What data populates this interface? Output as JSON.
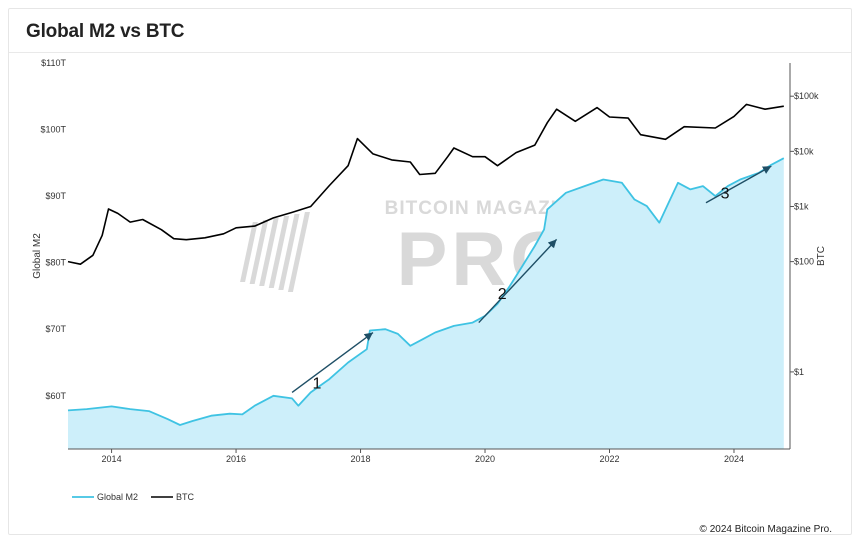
{
  "header": {
    "title": "Global M2 vs BTC"
  },
  "footer": {
    "copyright": "© 2024 Bitcoin Magazine Pro."
  },
  "watermark": {
    "top": "BITCOIN MAGAZINE",
    "main": "PRO"
  },
  "colors": {
    "m2": "#3fc3e3",
    "m2_fill": "#cdeffa",
    "btc": "#000000",
    "arrow": "#1f4f66",
    "watermark": "#d9d9d9"
  },
  "chart_data": {
    "type": "area",
    "title": "Global M2 vs BTC",
    "x_axis": {
      "ticks": [
        "2014",
        "2016",
        "2018",
        "2020",
        "2022",
        "2024"
      ],
      "range": [
        2013.3,
        2024.9
      ]
    },
    "y_left": {
      "label": "Global M2",
      "ticks": [
        "$60T",
        "$70T",
        "$80T",
        "$90T",
        "$100T",
        "$110T"
      ],
      "tick_values": [
        60,
        70,
        80,
        90,
        100,
        110
      ],
      "range": [
        52,
        110
      ]
    },
    "y_right": {
      "label": "BTC",
      "scale": "log",
      "ticks": [
        "$1",
        "$100",
        "$1k",
        "$10k",
        "$100k"
      ],
      "tick_values": [
        1,
        100,
        1000,
        10000,
        100000
      ],
      "range": [
        0.04,
        400000
      ]
    },
    "legend": [
      "Global M2",
      "BTC"
    ],
    "series": [
      {
        "name": "Global M2",
        "axis": "left",
        "style": "area",
        "points": [
          [
            2013.3,
            57.8
          ],
          [
            2013.6,
            58.0
          ],
          [
            2014.0,
            58.4
          ],
          [
            2014.3,
            58.0
          ],
          [
            2014.6,
            57.7
          ],
          [
            2014.9,
            56.5
          ],
          [
            2015.1,
            55.6
          ],
          [
            2015.3,
            56.2
          ],
          [
            2015.6,
            57.0
          ],
          [
            2015.9,
            57.3
          ],
          [
            2016.1,
            57.2
          ],
          [
            2016.3,
            58.5
          ],
          [
            2016.6,
            60.0
          ],
          [
            2016.9,
            59.6
          ],
          [
            2017.0,
            58.5
          ],
          [
            2017.2,
            60.5
          ],
          [
            2017.5,
            62.5
          ],
          [
            2017.8,
            65.0
          ],
          [
            2018.1,
            67.0
          ],
          [
            2018.15,
            69.8
          ],
          [
            2018.4,
            70.0
          ],
          [
            2018.6,
            69.3
          ],
          [
            2018.8,
            67.5
          ],
          [
            2019.0,
            68.5
          ],
          [
            2019.2,
            69.5
          ],
          [
            2019.5,
            70.5
          ],
          [
            2019.8,
            71.0
          ],
          [
            2020.0,
            72.0
          ],
          [
            2020.2,
            73.8
          ],
          [
            2020.4,
            76.5
          ],
          [
            2020.6,
            79.5
          ],
          [
            2020.8,
            82.5
          ],
          [
            2020.95,
            85.0
          ],
          [
            2021.0,
            88.0
          ],
          [
            2021.3,
            90.5
          ],
          [
            2021.6,
            91.5
          ],
          [
            2021.9,
            92.5
          ],
          [
            2022.2,
            92.0
          ],
          [
            2022.4,
            89.5
          ],
          [
            2022.6,
            88.5
          ],
          [
            2022.8,
            86.0
          ],
          [
            2022.95,
            89.0
          ],
          [
            2023.1,
            92.0
          ],
          [
            2023.3,
            91.0
          ],
          [
            2023.5,
            91.5
          ],
          [
            2023.7,
            90.0
          ],
          [
            2023.9,
            91.5
          ],
          [
            2024.1,
            92.5
          ],
          [
            2024.4,
            93.5
          ],
          [
            2024.6,
            94.7
          ],
          [
            2024.8,
            95.7
          ]
        ]
      },
      {
        "name": "BTC",
        "axis": "right",
        "style": "line",
        "points": [
          [
            2013.3,
            100
          ],
          [
            2013.5,
            90
          ],
          [
            2013.7,
            130
          ],
          [
            2013.85,
            300
          ],
          [
            2013.95,
            900
          ],
          [
            2014.1,
            750
          ],
          [
            2014.3,
            520
          ],
          [
            2014.5,
            580
          ],
          [
            2014.8,
            380
          ],
          [
            2015.0,
            260
          ],
          [
            2015.2,
            250
          ],
          [
            2015.5,
            270
          ],
          [
            2015.8,
            320
          ],
          [
            2016.0,
            410
          ],
          [
            2016.3,
            440
          ],
          [
            2016.6,
            620
          ],
          [
            2016.9,
            780
          ],
          [
            2017.2,
            1000
          ],
          [
            2017.5,
            2400
          ],
          [
            2017.8,
            5500
          ],
          [
            2017.95,
            17000
          ],
          [
            2018.2,
            9000
          ],
          [
            2018.5,
            7000
          ],
          [
            2018.8,
            6400
          ],
          [
            2018.95,
            3800
          ],
          [
            2019.2,
            4000
          ],
          [
            2019.4,
            8000
          ],
          [
            2019.5,
            11500
          ],
          [
            2019.8,
            8000
          ],
          [
            2020.0,
            8000
          ],
          [
            2020.2,
            5500
          ],
          [
            2020.5,
            9500
          ],
          [
            2020.8,
            13000
          ],
          [
            2021.0,
            33000
          ],
          [
            2021.15,
            58000
          ],
          [
            2021.45,
            35000
          ],
          [
            2021.8,
            62000
          ],
          [
            2022.0,
            42000
          ],
          [
            2022.3,
            40000
          ],
          [
            2022.5,
            20000
          ],
          [
            2022.9,
            16500
          ],
          [
            2023.2,
            28000
          ],
          [
            2023.7,
            26500
          ],
          [
            2024.0,
            43000
          ],
          [
            2024.2,
            71000
          ],
          [
            2024.5,
            58000
          ],
          [
            2024.8,
            66000
          ]
        ]
      }
    ],
    "annotations": [
      {
        "label": "1",
        "from": [
          2016.9,
          60.5
        ],
        "to": [
          2018.2,
          69.5
        ]
      },
      {
        "label": "2",
        "from": [
          2019.9,
          71.0
        ],
        "to": [
          2021.15,
          83.5
        ]
      },
      {
        "label": "3",
        "from": [
          2023.55,
          89.0
        ],
        "to": [
          2024.6,
          94.5
        ]
      }
    ]
  }
}
